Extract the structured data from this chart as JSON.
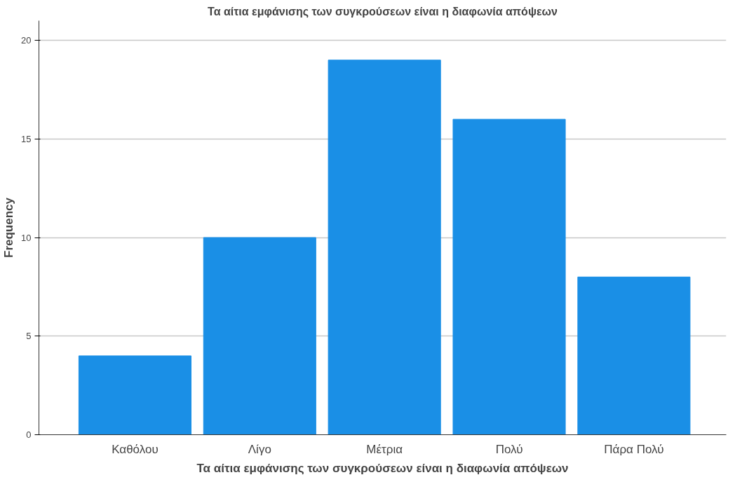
{
  "chart_data": {
    "type": "bar",
    "title": "Τα αίτια εμφάνισης των συγκρούσεων είναι η διαφωνία απόψεων",
    "xlabel": "Τα αίτια εμφάνισης των συγκρούσεων είναι η διαφωνία απόψεων",
    "ylabel": "Frequency",
    "categories": [
      "Καθόλου",
      "Λίγο",
      "Μέτρια",
      "Πολύ",
      "Πάρα Πολύ"
    ],
    "values": [
      4,
      10,
      19,
      16,
      8
    ],
    "color": "#1a8fe6",
    "ylim": [
      0,
      21
    ],
    "yticks": [
      0,
      5,
      10,
      15,
      20
    ],
    "grid": "y"
  }
}
